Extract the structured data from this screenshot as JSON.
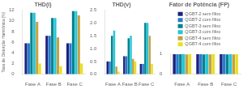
{
  "chart_data": [
    {
      "type": "bar",
      "title": "THD(i)",
      "ylabel": "Taxa de Distorção Harmônica (%)",
      "categories": [
        "Fase A",
        "Fase B",
        "Fase C"
      ],
      "series": [
        {
          "name": "QGBT-2 sem filtro",
          "color": "#1a237e",
          "values": [
            5.8,
            7.2,
            5.8
          ]
        },
        {
          "name": "QGBT-2 com filtro",
          "color": "#2979cc",
          "values": [
            5.8,
            7.2,
            5.8
          ]
        },
        {
          "name": "QGBT-3 sem filtro",
          "color": "#00838f",
          "values": [
            11.5,
            10.5,
            11.8
          ]
        },
        {
          "name": "QGBT-3 com filtro",
          "color": "#26c6da",
          "values": [
            11.5,
            10.5,
            11.8
          ]
        },
        {
          "name": "QGBT-4 sem filtro",
          "color": "#c8a040",
          "values": [
            9.8,
            6.9,
            11.0
          ]
        },
        {
          "name": "QGBT-4 com filtro",
          "color": "#e8e020",
          "values": [
            2.0,
            1.5,
            2.0
          ]
        }
      ],
      "ylim": [
        0,
        12
      ],
      "yticks": [
        0,
        2,
        4,
        6,
        8,
        10,
        12
      ],
      "grid": false
    },
    {
      "type": "bar",
      "title": "THD(v)",
      "categories": [
        "Fase A",
        "Fase B",
        "Fase C"
      ],
      "series": [
        {
          "name": "QGBT-2 sem filtro",
          "color": "#1a237e",
          "values": [
            0.5,
            0.7,
            0.4
          ]
        },
        {
          "name": "QGBT-2 com filtro",
          "color": "#2979cc",
          "values": [
            0.5,
            0.7,
            0.4
          ]
        },
        {
          "name": "QGBT-3 sem filtro",
          "color": "#00838f",
          "values": [
            1.5,
            1.4,
            2.0
          ]
        },
        {
          "name": "QGBT-3 com filtro",
          "color": "#26c6da",
          "values": [
            1.7,
            1.5,
            2.0
          ]
        },
        {
          "name": "QGBT-4 sem filtro",
          "color": "#c8a040",
          "values": [
            0.3,
            0.6,
            1.5
          ]
        },
        {
          "name": "QGBT-4 com filtro",
          "color": "#e8e020",
          "values": [
            0.1,
            0.5,
            0.4
          ]
        }
      ],
      "ylim": [
        0,
        2.5
      ],
      "yticks": [
        {
          "value": 0,
          "label": "0.0"
        },
        0.5,
        {
          "value": 1,
          "label": "1.0"
        },
        1.5,
        {
          "value": 2,
          "label": "2.0"
        },
        2.5
      ],
      "grid": false
    },
    {
      "type": "bar",
      "title": "Fator de Potência (FP)",
      "categories": [
        "Fase A",
        "Fase B",
        "Fase C"
      ],
      "series": [
        {
          "name": "QGBT-2 sem filtro",
          "color": "#1a237e",
          "values": [
            0.975,
            0.973,
            0.972
          ]
        },
        {
          "name": "QGBT-2 com filtro",
          "color": "#2979cc",
          "values": [
            0.977,
            0.975,
            0.974
          ]
        },
        {
          "name": "QGBT-3 sem filtro",
          "color": "#00838f",
          "values": [
            0.972,
            0.97,
            0.97
          ]
        },
        {
          "name": "QGBT-3 com filtro",
          "color": "#26c6da",
          "values": [
            0.982,
            0.975,
            0.974
          ]
        },
        {
          "name": "QGBT-4 sem filtro",
          "color": "#c8a040",
          "values": [
            0.97,
            0.963,
            0.963
          ]
        },
        {
          "name": "QGBT-4 com filtro",
          "color": "#e8e020",
          "values": [
            0.99,
            0.988,
            0.987
          ]
        }
      ],
      "ylim": [
        0,
        1
      ],
      "yticks": [
        0,
        1
      ],
      "grid": false,
      "legend": "top"
    }
  ]
}
